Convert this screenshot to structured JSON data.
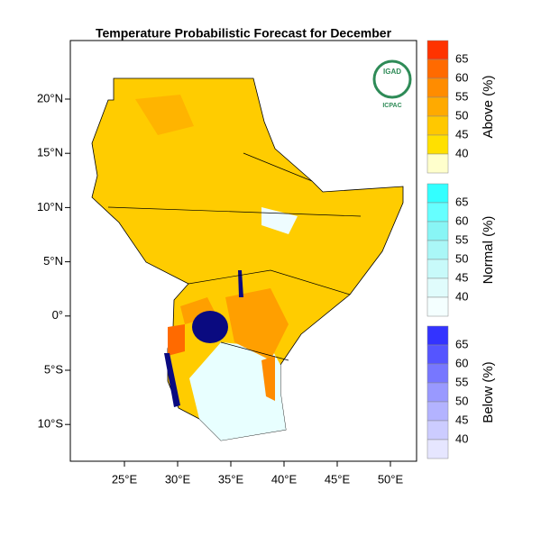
{
  "title": "Temperature Probabilistic Forecast for December",
  "map": {
    "lat_labels": [
      "20°N",
      "15°N",
      "10°N",
      "5°N",
      "0°",
      "5°S",
      "10°S"
    ],
    "lon_labels": [
      "25°E",
      "30°E",
      "35°E",
      "40°E",
      "45°E",
      "50°E"
    ]
  },
  "logo": {
    "name": "IGAD",
    "org": "ICPAC"
  },
  "legend": [
    {
      "label": "Above (%)",
      "levels": [
        65,
        60,
        55,
        50,
        45,
        40
      ],
      "colors": [
        "#ff3300",
        "#ff6a00",
        "#ff8c00",
        "#ffaa00",
        "#ffc800",
        "#ffe000",
        "#ffffcc"
      ]
    },
    {
      "label": "Normal (%)",
      "levels": [
        65,
        60,
        55,
        50,
        45,
        40
      ],
      "colors": [
        "#33ffff",
        "#66ffff",
        "#88f5f5",
        "#aaf7f7",
        "#c8fafa",
        "#e0fcfc",
        "#f4ffff"
      ]
    },
    {
      "label": "Below (%)",
      "levels": [
        65,
        60,
        55,
        50,
        45,
        40
      ],
      "colors": [
        "#3333ff",
        "#5555ff",
        "#7777ff",
        "#9999ff",
        "#b3b3ff",
        "#ccccff",
        "#e6e6ff"
      ]
    }
  ]
}
